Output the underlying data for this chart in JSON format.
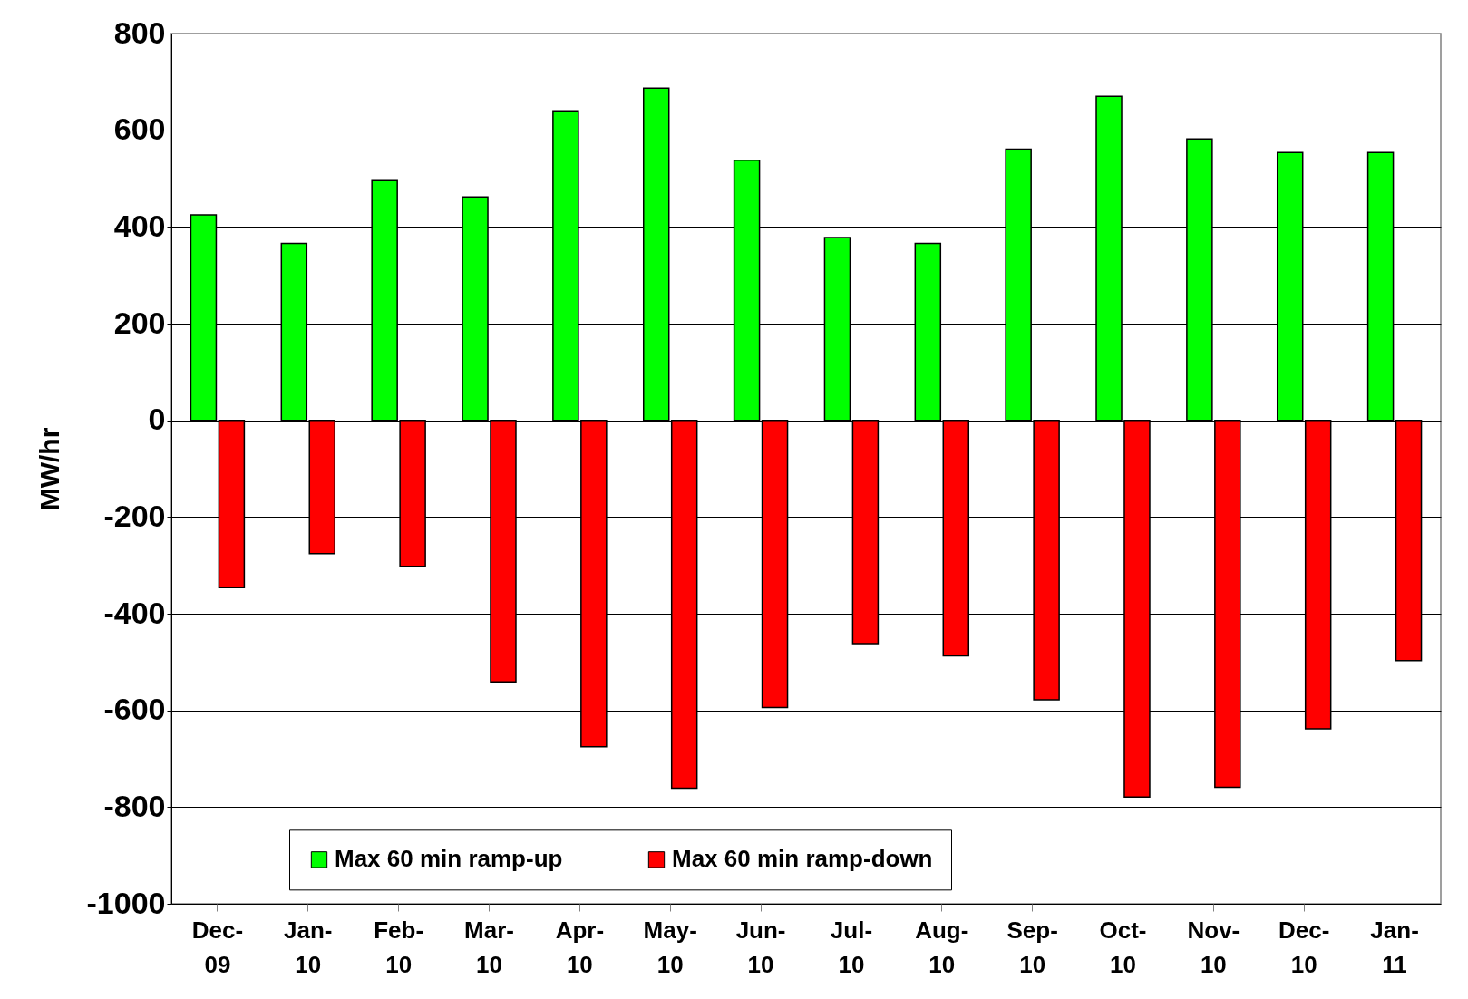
{
  "chart_data": {
    "type": "bar",
    "ylabel": "MW/hr",
    "categories": [
      "Dec-09",
      "Jan-10",
      "Feb-10",
      "Mar-10",
      "Apr-10",
      "May-10",
      "Jun-10",
      "Jul-10",
      "Aug-10",
      "Sep-10",
      "Oct-10",
      "Nov-10",
      "Dec-10",
      "Jan-11"
    ],
    "series": [
      {
        "name": "Max 60 min ramp-up",
        "color": "#00ff00",
        "values": [
          425,
          366,
          496,
          462,
          640,
          687,
          538,
          378,
          366,
          561,
          670,
          582,
          554,
          554
        ]
      },
      {
        "name": "Max 60 min ramp-down",
        "color": "#ff0000",
        "values": [
          -346,
          -276,
          -302,
          -541,
          -675,
          -761,
          -594,
          -462,
          -487,
          -578,
          -779,
          -759,
          -638,
          -497
        ]
      }
    ],
    "ylim": [
      -1000,
      800
    ],
    "yticks": [
      -1000,
      -800,
      -600,
      -400,
      -200,
      0,
      200,
      400,
      600,
      800
    ],
    "grid": "y",
    "legend": "bottom"
  }
}
